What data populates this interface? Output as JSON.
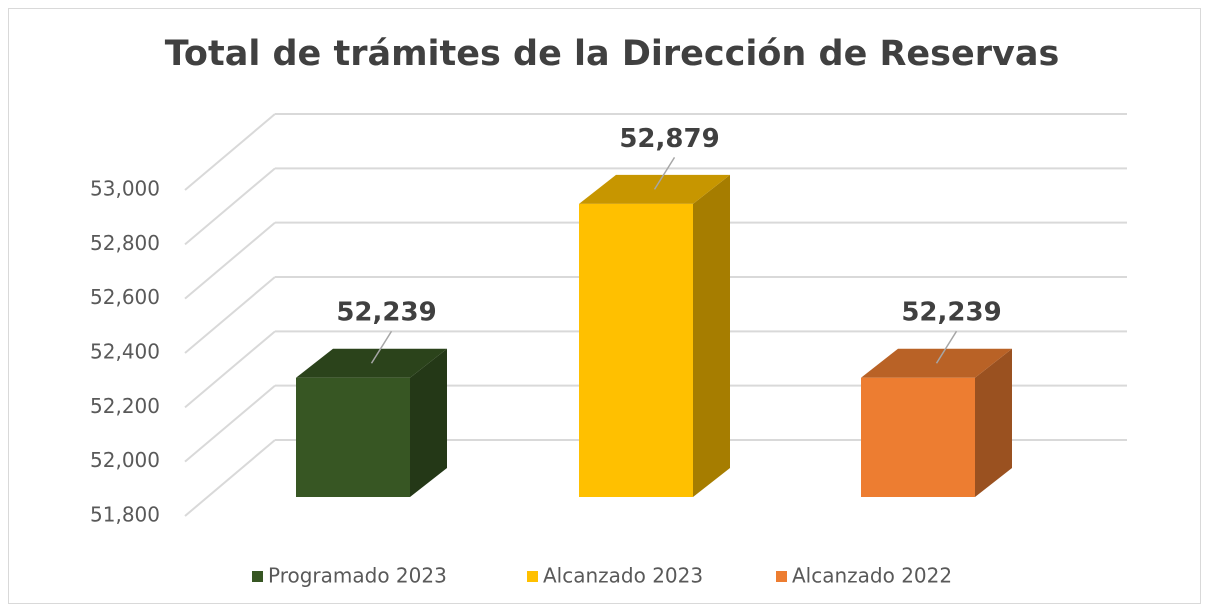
{
  "chart_data": {
    "type": "bar3d",
    "title": "Total de trámites de la Dirección de Reservas",
    "series": [
      {
        "name": "Programado 2023",
        "color": "#375623",
        "values": [
          52239
        ],
        "value_labels": [
          "52,239"
        ]
      },
      {
        "name": "Alcanzado 2023",
        "color": "#ffc000",
        "values": [
          52879
        ],
        "value_labels": [
          "52,879"
        ]
      },
      {
        "name": "Alcanzado 2022",
        "color": "#ed7d31",
        "values": [
          52239
        ],
        "value_labels": [
          "52,239"
        ]
      }
    ],
    "ylim": [
      51800,
      53000
    ],
    "yticks": [
      {
        "value": 51800,
        "label": "51,800"
      },
      {
        "value": 52000,
        "label": "52,000"
      },
      {
        "value": 52200,
        "label": "52,200"
      },
      {
        "value": 52400,
        "label": "52,400"
      },
      {
        "value": 52600,
        "label": "52,600"
      },
      {
        "value": 52800,
        "label": "52,800"
      },
      {
        "value": 53000,
        "label": "53,000"
      }
    ],
    "grid": true,
    "legend": "bottom"
  }
}
